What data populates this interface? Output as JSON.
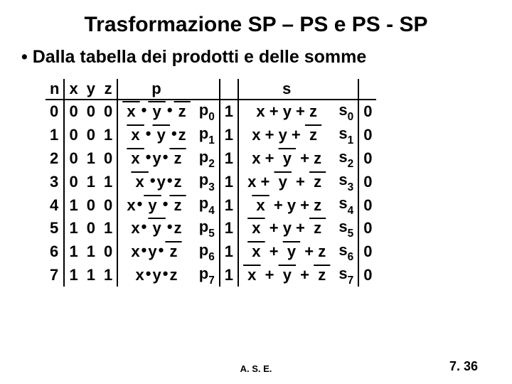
{
  "title": "Trasformazione SP – PS e PS - SP",
  "bullet": "•  Dalla tabella dei prodotti e delle somme",
  "footer_center": "A. S. E.",
  "footer_right": "7. 36",
  "headers": {
    "n": "n",
    "x": "x",
    "y": "y",
    "z": "z",
    "p": "p",
    "s": "s"
  },
  "rows": [
    {
      "n": "0",
      "x": "0",
      "y": "0",
      "z": "0",
      "p": {
        "x": true,
        "y": true,
        "z": true
      },
      "pi": "0",
      "pv": "1",
      "s": {
        "x": false,
        "y": false,
        "z": false
      },
      "si": "0",
      "sv": "0"
    },
    {
      "n": "1",
      "x": "0",
      "y": "0",
      "z": "1",
      "p": {
        "x": true,
        "y": true,
        "z": false
      },
      "pi": "1",
      "pv": "1",
      "s": {
        "x": false,
        "y": false,
        "z": true
      },
      "si": "1",
      "sv": "0"
    },
    {
      "n": "2",
      "x": "0",
      "y": "1",
      "z": "0",
      "p": {
        "x": true,
        "y": false,
        "z": true
      },
      "pi": "2",
      "pv": "1",
      "s": {
        "x": false,
        "y": true,
        "z": false
      },
      "si": "2",
      "sv": "0"
    },
    {
      "n": "3",
      "x": "0",
      "y": "1",
      "z": "1",
      "p": {
        "x": true,
        "y": false,
        "z": false
      },
      "pi": "3",
      "pv": "1",
      "s": {
        "x": false,
        "y": true,
        "z": true
      },
      "si": "3",
      "sv": "0"
    },
    {
      "n": "4",
      "x": "1",
      "y": "0",
      "z": "0",
      "p": {
        "x": false,
        "y": true,
        "z": true
      },
      "pi": "4",
      "pv": "1",
      "s": {
        "x": true,
        "y": false,
        "z": false
      },
      "si": "4",
      "sv": "0"
    },
    {
      "n": "5",
      "x": "1",
      "y": "0",
      "z": "1",
      "p": {
        "x": false,
        "y": true,
        "z": false
      },
      "pi": "5",
      "pv": "1",
      "s": {
        "x": true,
        "y": false,
        "z": true
      },
      "si": "5",
      "sv": "0"
    },
    {
      "n": "6",
      "x": "1",
      "y": "1",
      "z": "0",
      "p": {
        "x": false,
        "y": false,
        "z": true
      },
      "pi": "6",
      "pv": "1",
      "s": {
        "x": true,
        "y": true,
        "z": false
      },
      "si": "6",
      "sv": "0"
    },
    {
      "n": "7",
      "x": "1",
      "y": "1",
      "z": "1",
      "p": {
        "x": false,
        "y": false,
        "z": false
      },
      "pi": "7",
      "pv": "1",
      "s": {
        "x": true,
        "y": true,
        "z": true
      },
      "si": "7",
      "sv": "0"
    }
  ],
  "symbols": {
    "dot": "•",
    "plus": "+"
  },
  "table_style": {
    "font_size": 22,
    "font_weight": "bold",
    "border_color": "#000000",
    "border_width": 2
  }
}
